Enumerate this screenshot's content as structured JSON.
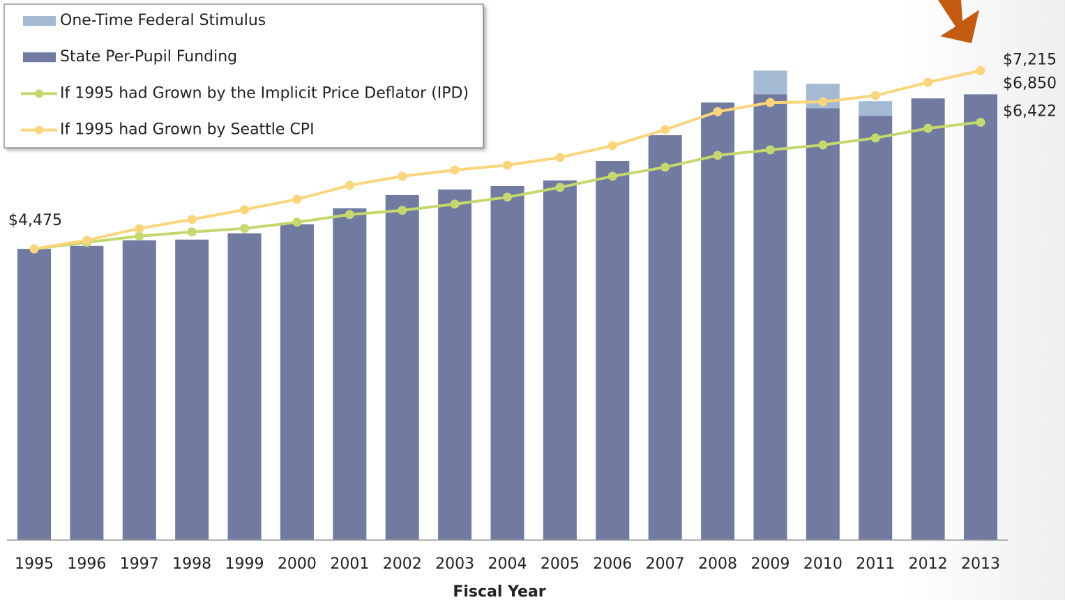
{
  "chart_data": {
    "type": "bar",
    "x_label": "Fiscal Year",
    "categories": [
      "1995",
      "1996",
      "1997",
      "1998",
      "1999",
      "2000",
      "2001",
      "2002",
      "2003",
      "2004",
      "2005",
      "2006",
      "2007",
      "2008",
      "2009",
      "2010",
      "2011",
      "2012",
      "2013"
    ],
    "ylim": [
      0,
      8300
    ],
    "series": [
      {
        "name": "One-Time Federal Stimulus",
        "type": "bar",
        "stacked": true,
        "color": "#a4bad2",
        "values": [
          0,
          0,
          0,
          0,
          0,
          0,
          0,
          0,
          0,
          0,
          0,
          0,
          0,
          0,
          363,
          374,
          224,
          0,
          0
        ]
      },
      {
        "name": "State Per-Pupil Funding",
        "type": "bar",
        "color": "#717aa1",
        "values": [
          4475,
          4522,
          4607,
          4618,
          4714,
          4853,
          5099,
          5302,
          5388,
          5441,
          5527,
          5826,
          6222,
          6724,
          6852,
          6638,
          6521,
          6788,
          6850
        ],
        "value_labels": [
          "$4,475",
          null,
          null,
          null,
          null,
          null,
          null,
          null,
          null,
          null,
          null,
          null,
          null,
          null,
          null,
          null,
          null,
          null,
          "$6,850"
        ]
      },
      {
        "name": "If 1995 had Grown by the Implicit Price Deflator (IPD)",
        "type": "line",
        "color": "#c5d86d",
        "values": [
          4475,
          4575,
          4671,
          4736,
          4789,
          4885,
          5003,
          5067,
          5163,
          5270,
          5420,
          5591,
          5730,
          5912,
          5997,
          6072,
          6179,
          6328,
          6422
        ],
        "value_labels": [
          null,
          null,
          null,
          null,
          null,
          null,
          null,
          null,
          null,
          null,
          null,
          null,
          null,
          null,
          null,
          null,
          null,
          null,
          "$6,422"
        ]
      },
      {
        "name": "If 1995 had Grown by Seattle CPI",
        "type": "line",
        "color": "#fad57a",
        "values": [
          4475,
          4607,
          4789,
          4928,
          5078,
          5238,
          5452,
          5591,
          5687,
          5762,
          5880,
          6061,
          6307,
          6585,
          6724,
          6735,
          6831,
          7034,
          7215
        ],
        "value_labels": [
          null,
          null,
          null,
          null,
          null,
          null,
          null,
          null,
          null,
          null,
          null,
          null,
          null,
          null,
          null,
          null,
          null,
          null,
          "$7,215"
        ]
      }
    ]
  }
}
